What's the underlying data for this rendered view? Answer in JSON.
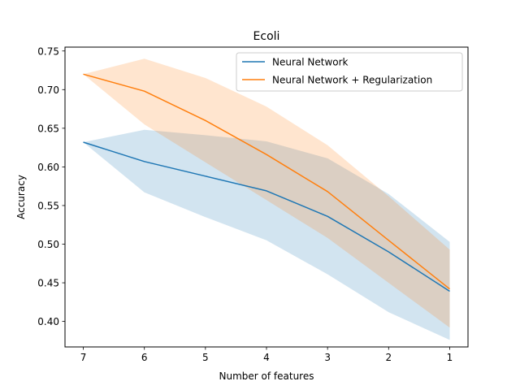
{
  "chart_data": {
    "type": "line",
    "title": "Ecoli",
    "xlabel": "Number of features",
    "ylabel": "Accuracy",
    "x": [
      7,
      6,
      5,
      4,
      3,
      2,
      1
    ],
    "x_axis_inverted": true,
    "xlim": [
      7.3,
      0.7
    ],
    "ylim": [
      0.367,
      0.755
    ],
    "xticks": [
      7,
      6,
      5,
      4,
      3,
      2,
      1
    ],
    "yticks": [
      0.4,
      0.45,
      0.5,
      0.55,
      0.6,
      0.65,
      0.7,
      0.75
    ],
    "ytick_labels": [
      "0.40",
      "0.45",
      "0.50",
      "0.55",
      "0.60",
      "0.65",
      "0.70",
      "0.75"
    ],
    "grid": false,
    "legend_position": "top-right",
    "series": [
      {
        "name": "Neural Network",
        "color": "#1f77b4",
        "values": [
          0.632,
          0.607,
          0.588,
          0.569,
          0.536,
          0.49,
          0.439
        ],
        "band_upper": [
          0.632,
          0.648,
          0.641,
          0.633,
          0.611,
          0.565,
          0.503
        ],
        "band_lower": [
          0.632,
          0.567,
          0.535,
          0.505,
          0.461,
          0.412,
          0.376
        ]
      },
      {
        "name": "Neural Network + Regularization",
        "color": "#ff7f0e",
        "values": [
          0.72,
          0.698,
          0.66,
          0.616,
          0.568,
          0.505,
          0.442
        ],
        "band_upper": [
          0.72,
          0.74,
          0.715,
          0.678,
          0.628,
          0.562,
          0.493
        ],
        "band_lower": [
          0.72,
          0.655,
          0.606,
          0.557,
          0.508,
          0.45,
          0.392
        ]
      }
    ]
  }
}
